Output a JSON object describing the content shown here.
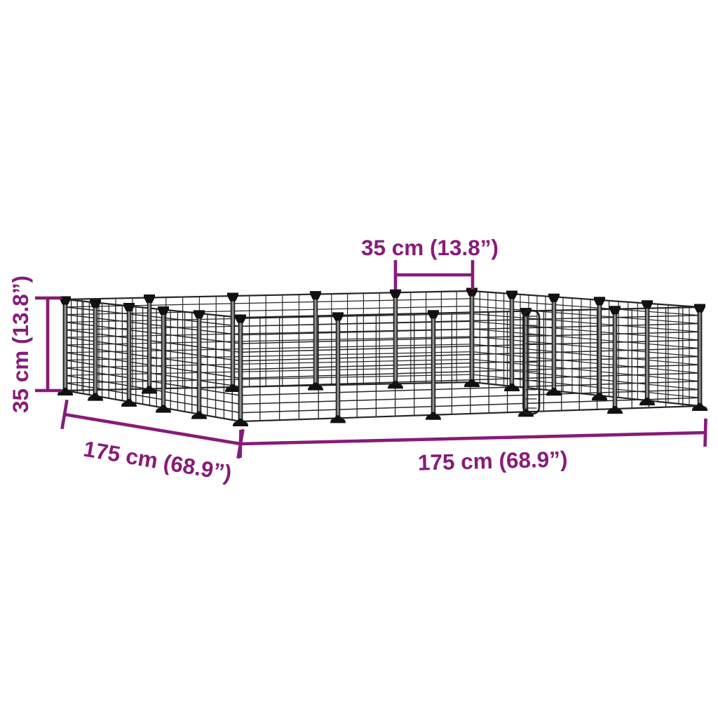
{
  "diagram": {
    "subject": "steel mesh pet playpen with door, 20 panels (5 per side)",
    "background": "#FFFFFF",
    "accent_color": "#871B79",
    "wire_color": "#262626",
    "connector_color": "#111111",
    "dimensions": {
      "panel_width": {
        "label": "35 cm (13.8”)"
      },
      "height": {
        "label": "35 cm (13.8”)"
      },
      "depth": {
        "label": "175 cm (68.9”)"
      },
      "width": {
        "label": "175 cm (68.9”)"
      }
    }
  }
}
